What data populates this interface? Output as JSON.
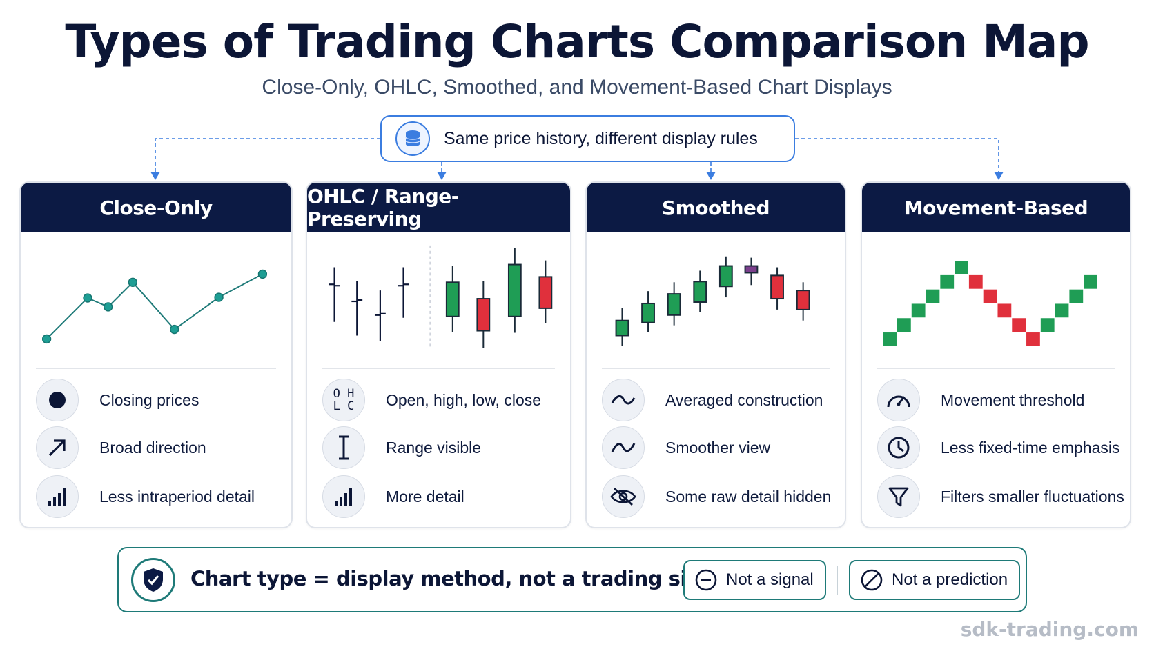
{
  "title": "Types of Trading Charts Comparison Map",
  "subtitle": "Close-Only, OHLC, Smoothed, and Movement-Based Chart Displays",
  "banner": {
    "text": "Same price history, different display rules",
    "icon": "database-icon"
  },
  "colors": {
    "navy": "#0c1a44",
    "accent_blue": "#3b7de0",
    "teal": "#1e7a78",
    "up_green": "#1f9d55",
    "down_red": "#e0303c",
    "doji_purple": "#7b3f8c"
  },
  "cards": [
    {
      "heading": "Close-Only",
      "features": [
        {
          "label": "Closing prices",
          "icon": "dot-icon"
        },
        {
          "label": "Broad direction",
          "icon": "arrow-up-right-icon"
        },
        {
          "label": "Less intraperiod detail",
          "icon": "bar-signal-icon"
        }
      ]
    },
    {
      "heading": "OHLC / Range-Preserving",
      "features": [
        {
          "label": "Open, high, low, close",
          "icon": "ohlc-icon",
          "icon_text": [
            "O",
            "H",
            "L",
            "C"
          ]
        },
        {
          "label": "Range visible",
          "icon": "range-bracket-icon"
        },
        {
          "label": "More detail",
          "icon": "bar-signal-icon"
        }
      ]
    },
    {
      "heading": "Smoothed",
      "features": [
        {
          "label": "Averaged construction",
          "icon": "wave-icon"
        },
        {
          "label": "Smoother view",
          "icon": "wave-icon"
        },
        {
          "label": "Some raw detail hidden",
          "icon": "eye-slash-icon"
        }
      ]
    },
    {
      "heading": "Movement-Based",
      "features": [
        {
          "label": "Movement threshold",
          "icon": "gauge-icon"
        },
        {
          "label": "Less fixed-time emphasis",
          "icon": "clock-icon"
        },
        {
          "label": "Filters smaller fluctuations",
          "icon": "funnel-icon"
        }
      ]
    }
  ],
  "footer": {
    "text": "Chart type = display method, not a  trading signal",
    "icon": "shield-check-icon",
    "pills": [
      {
        "label": "Not a signal",
        "icon": "minus-circle-icon"
      },
      {
        "label": "Not a prediction",
        "icon": "prohibited-icon"
      }
    ]
  },
  "watermark": "sdk-trading.com"
}
